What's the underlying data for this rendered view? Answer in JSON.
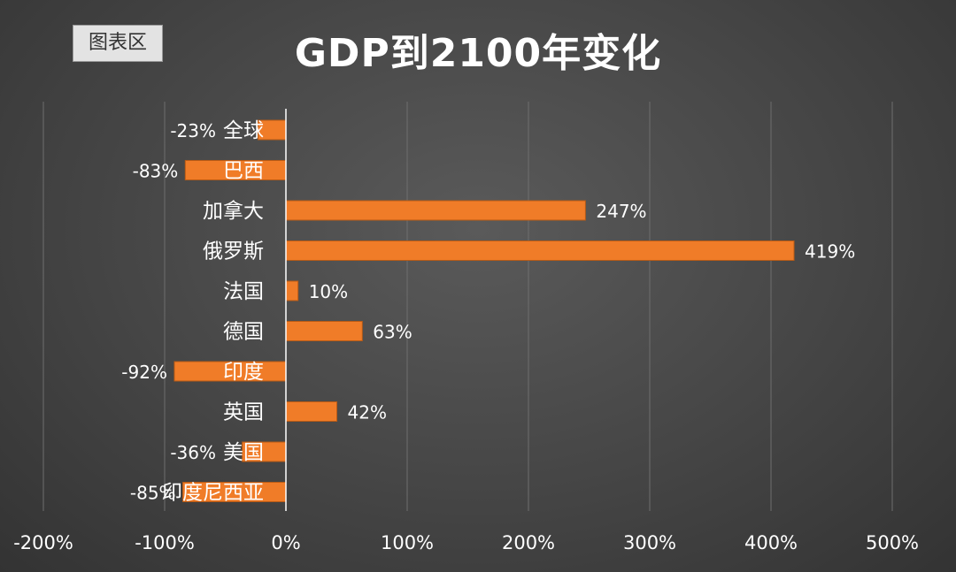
{
  "header": {
    "chart_area_label": "图表区"
  },
  "colors": {
    "bar": "#f07c28",
    "bar_edge": "#b85a15",
    "grid": "#6e6e6e",
    "axis": "#ffffff"
  },
  "chart_data": {
    "type": "bar",
    "orientation": "horizontal",
    "title": "GDP到2100年变化",
    "categories": [
      "全球",
      "巴西",
      "加拿大",
      "俄罗斯",
      "法国",
      "德国",
      "印度",
      "英国",
      "美国",
      "印度尼西亚"
    ],
    "values": [
      -23,
      -83,
      247,
      419,
      10,
      63,
      -92,
      42,
      -36,
      -85
    ],
    "data_labels": [
      "-23%",
      "-83%",
      "247%",
      "419%",
      "10%",
      "63%",
      "-92%",
      "42%",
      "-36%",
      "-85%"
    ],
    "xlim": [
      -200,
      500
    ],
    "xticks": [
      -200,
      -100,
      0,
      100,
      200,
      300,
      400,
      500
    ],
    "xtick_labels": [
      "-200%",
      "-100%",
      "0%",
      "100%",
      "200%",
      "300%",
      "400%",
      "500%"
    ],
    "grid": true,
    "legend": "none"
  }
}
